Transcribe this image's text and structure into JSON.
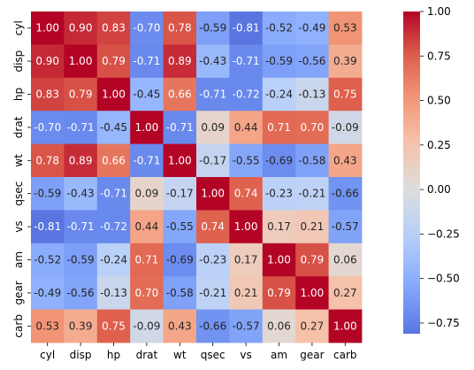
{
  "chart_data": {
    "type": "heatmap",
    "title": "",
    "xlabel": "",
    "ylabel": "",
    "x_labels": [
      "cyl",
      "disp",
      "hp",
      "drat",
      "wt",
      "qsec",
      "vs",
      "am",
      "gear",
      "carb"
    ],
    "y_labels": [
      "cyl",
      "disp",
      "hp",
      "drat",
      "wt",
      "qsec",
      "vs",
      "am",
      "gear",
      "carb"
    ],
    "values": [
      [
        1.0,
        0.9,
        0.83,
        -0.7,
        0.78,
        -0.59,
        -0.81,
        -0.52,
        -0.49,
        0.53
      ],
      [
        0.9,
        1.0,
        0.79,
        -0.71,
        0.89,
        -0.43,
        -0.71,
        -0.59,
        -0.56,
        0.39
      ],
      [
        0.83,
        0.79,
        1.0,
        -0.45,
        0.66,
        -0.71,
        -0.72,
        -0.24,
        -0.13,
        0.75
      ],
      [
        -0.7,
        -0.71,
        -0.45,
        1.0,
        -0.71,
        0.09,
        0.44,
        0.71,
        0.7,
        -0.09
      ],
      [
        0.78,
        0.89,
        0.66,
        -0.71,
        1.0,
        -0.17,
        -0.55,
        -0.69,
        -0.58,
        0.43
      ],
      [
        -0.59,
        -0.43,
        -0.71,
        0.09,
        -0.17,
        1.0,
        0.74,
        -0.23,
        -0.21,
        -0.66
      ],
      [
        -0.81,
        -0.71,
        -0.72,
        0.44,
        -0.55,
        0.74,
        1.0,
        0.17,
        0.21,
        -0.57
      ],
      [
        -0.52,
        -0.59,
        -0.24,
        0.71,
        -0.69,
        -0.23,
        0.17,
        1.0,
        0.79,
        0.06
      ],
      [
        -0.49,
        -0.56,
        -0.13,
        0.7,
        -0.58,
        -0.21,
        0.21,
        0.79,
        1.0,
        0.27
      ],
      [
        0.53,
        0.39,
        0.75,
        -0.09,
        0.43,
        -0.66,
        -0.57,
        0.06,
        0.27,
        1.0
      ]
    ],
    "annotation_format": "2 decimals",
    "colormap": "coolwarm",
    "center": 0,
    "vmin": -0.81,
    "vmax": 1.0,
    "colorbar": {
      "ticks": [
        1.0,
        0.75,
        0.5,
        0.25,
        0.0,
        -0.25,
        -0.5,
        -0.75
      ],
      "tick_labels": [
        "1.00",
        "0.75",
        "0.50",
        "0.25",
        "0.00",
        "−0.25",
        "−0.50",
        "−0.75"
      ]
    },
    "grid": false,
    "legend": "colorbar-right"
  }
}
